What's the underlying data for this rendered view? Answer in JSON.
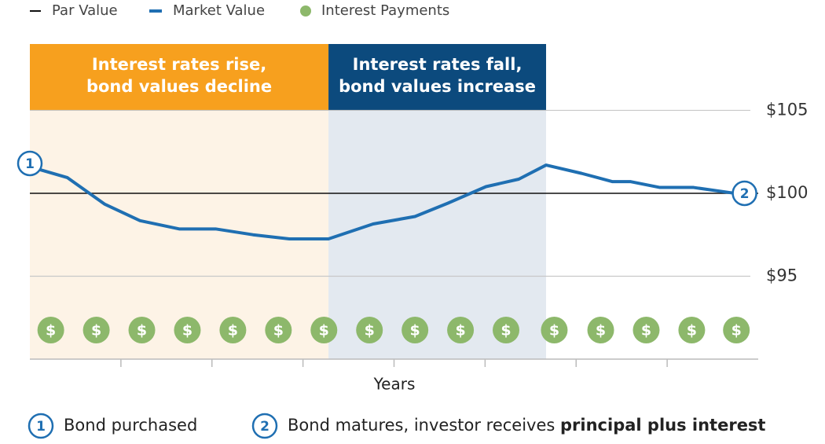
{
  "chart_data": {
    "type": "line",
    "x_label": "Years",
    "xlim": [
      0,
      8
    ],
    "xticks": [
      1,
      2,
      3,
      4,
      5,
      6,
      7
    ],
    "ylim": [
      90,
      109
    ],
    "yticks": [
      {
        "value": 95,
        "label": "$95"
      },
      {
        "value": 100,
        "label": "$100"
      },
      {
        "value": 105,
        "label": "$105"
      }
    ],
    "grid": true,
    "series": [
      {
        "name": "Market Value",
        "color": "#1f6fb2",
        "x": [
          0,
          0.41,
          0.82,
          1.21,
          1.64,
          2.04,
          2.45,
          2.85,
          3.28,
          3.77,
          4.23,
          4.59,
          5.01,
          5.37,
          5.67,
          6.06,
          6.4,
          6.6,
          6.92,
          7.29,
          7.74
        ],
        "values": [
          101.6,
          100.95,
          99.35,
          98.35,
          97.85,
          97.85,
          97.5,
          97.25,
          97.25,
          98.15,
          98.6,
          99.4,
          100.4,
          100.85,
          101.7,
          101.2,
          100.7,
          100.7,
          100.35,
          100.35,
          100
        ]
      },
      {
        "name": "Par Value",
        "color": "#111111",
        "x": [
          0,
          8
        ],
        "values": [
          100,
          100
        ]
      }
    ],
    "interest_payments": {
      "name": "Interest Payments",
      "color": "#8db86b",
      "label": "$",
      "x": [
        0.23,
        0.73,
        1.23,
        1.73,
        2.23,
        2.73,
        3.23,
        3.73,
        4.23,
        4.73,
        5.23,
        5.76,
        6.27,
        6.77,
        7.27,
        7.76
      ]
    },
    "regions": [
      {
        "lines": [
          "Interest rates rise,",
          "bond values decline"
        ],
        "start": 0,
        "end": 3.28,
        "color": "#f7a01e",
        "fill": "#fdf3e6"
      },
      {
        "lines": [
          "Interest rates fall,",
          "bond values increase"
        ],
        "start": 3.28,
        "end": 5.67,
        "color": "#0c4a7d",
        "fill": "#e3e9f0"
      }
    ],
    "markers": [
      {
        "label": "1",
        "x": 0,
        "y": 101.8
      },
      {
        "label": "2",
        "x": 7.85,
        "y": 100
      }
    ],
    "footnotes": [
      {
        "number": "1",
        "text": "Bond purchased"
      },
      {
        "number": "2",
        "text": "Bond matures, investor receives ",
        "bold": "principal plus interest"
      }
    ]
  }
}
